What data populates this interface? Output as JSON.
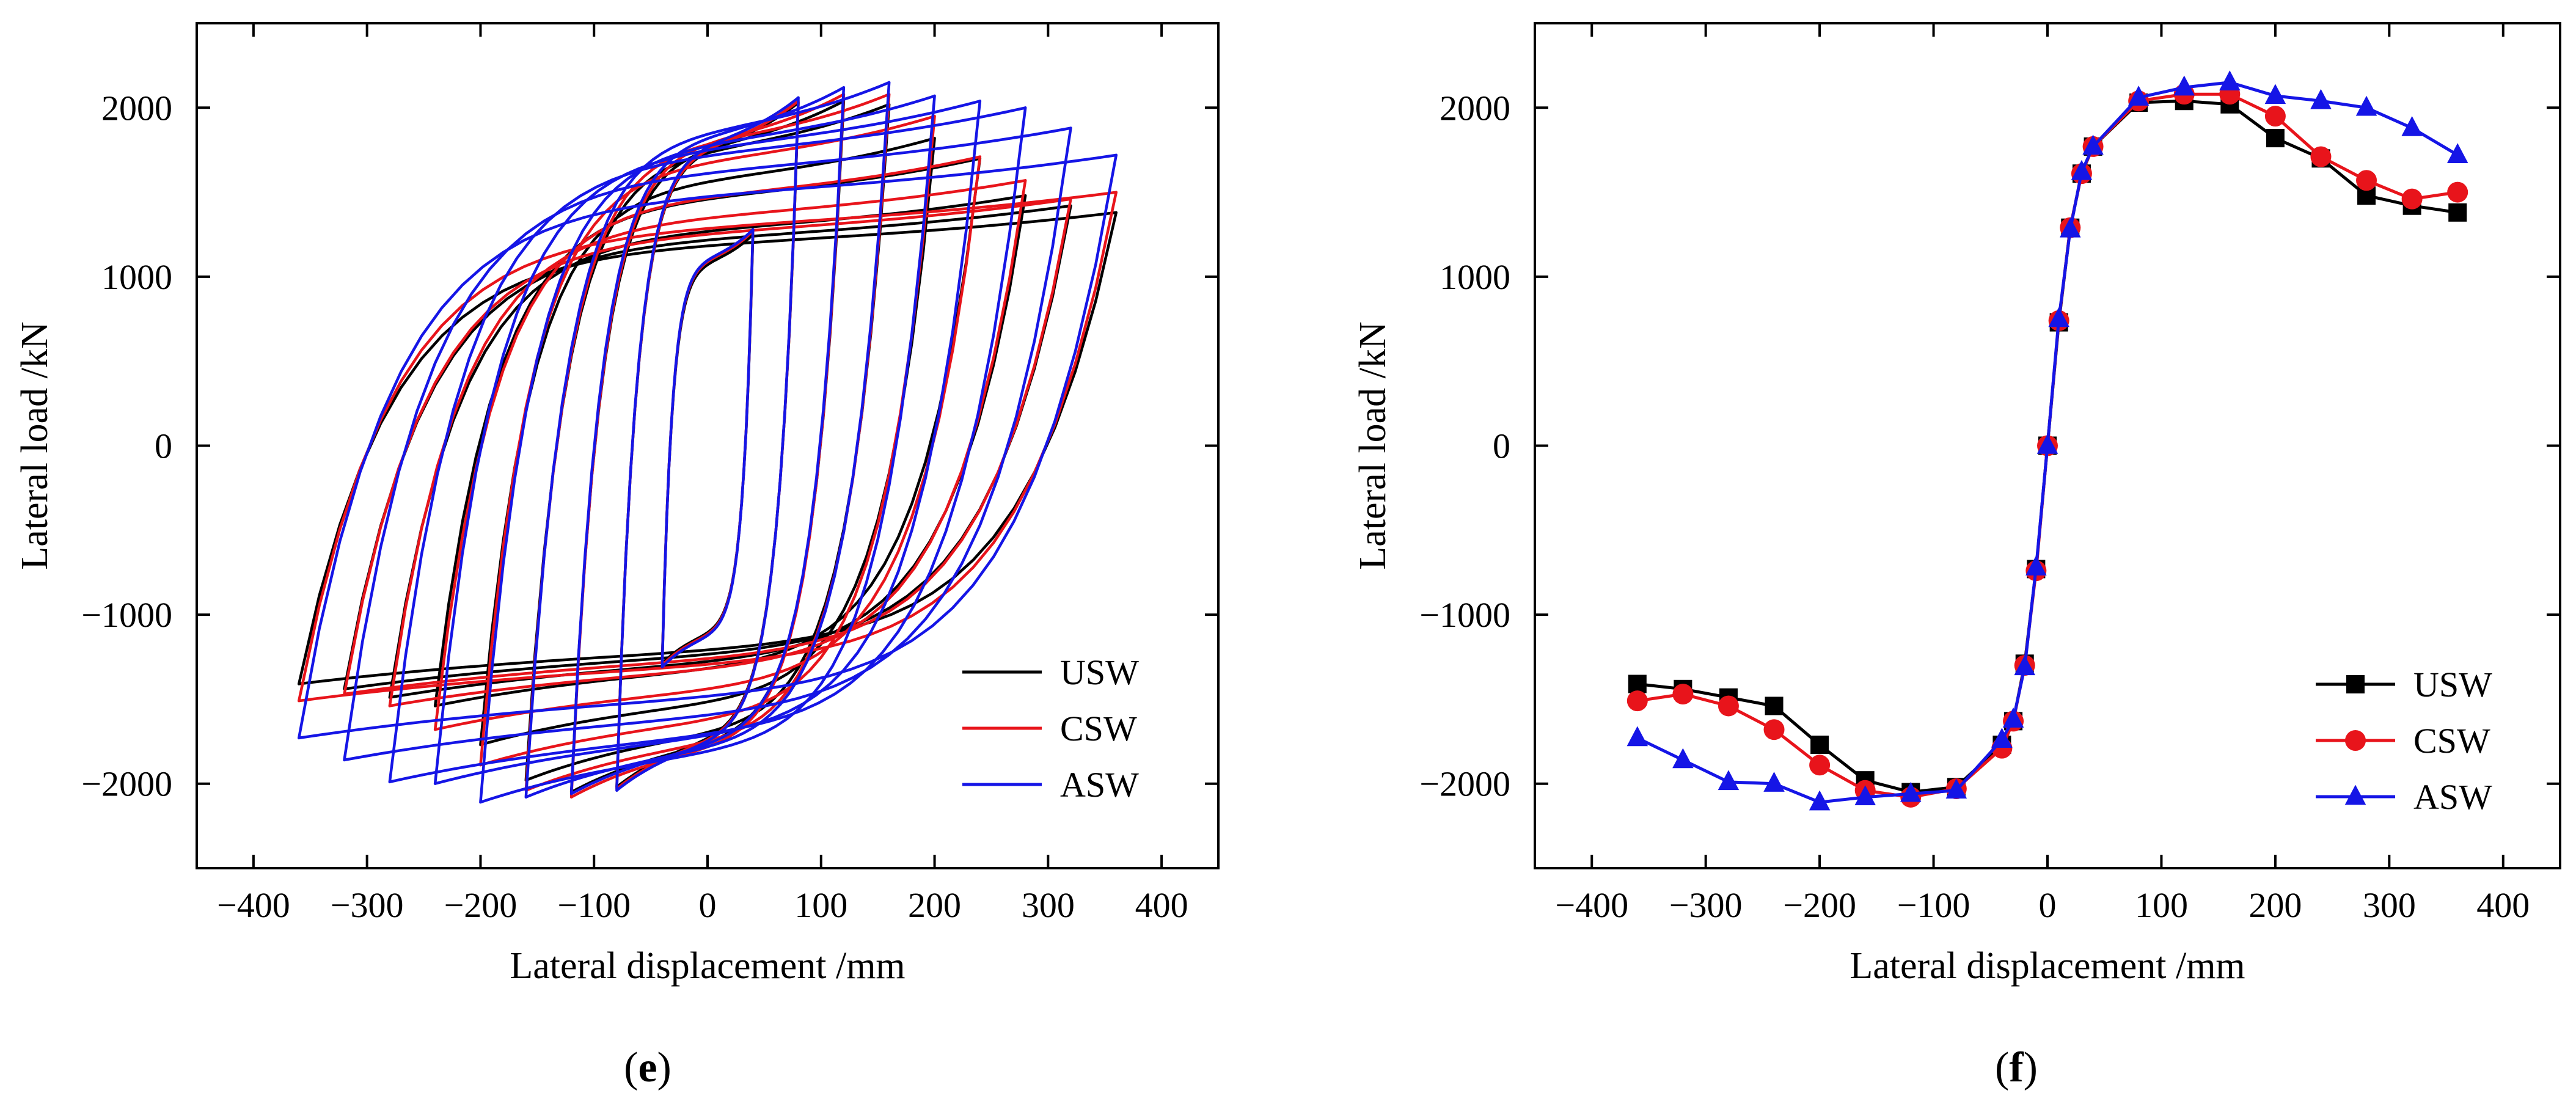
{
  "chart_data": [
    {
      "id": "e",
      "panel_label_open": "(",
      "panel_label": "e",
      "panel_label_close": ")",
      "type": "line",
      "subtype": "hysteresis",
      "xlabel": "Lateral displacement /mm",
      "ylabel": "Lateral load /kN",
      "xlim": [
        -450,
        450
      ],
      "ylim": [
        -2500,
        2500
      ],
      "xticks": [
        -400,
        -300,
        -200,
        -100,
        0,
        100,
        200,
        300,
        400
      ],
      "xtick_labels": [
        "−400",
        "−300",
        "−200",
        "−100",
        "0",
        "100",
        "200",
        "300",
        "400"
      ],
      "yticks": [
        -2000,
        -1000,
        0,
        1000,
        2000
      ],
      "ytick_labels": [
        "−2000",
        "−1000",
        "0",
        "1000",
        "2000"
      ],
      "legend_position": "bottom-right",
      "amplitudes": [
        40,
        80,
        120,
        160,
        200,
        240,
        280,
        320,
        360
      ],
      "series": [
        {
          "name": "USW",
          "color": "#000000",
          "peak_pos": [
            1250,
            2030,
            2040,
            2020,
            1820,
            1700,
            1480,
            1420,
            1380
          ],
          "peak_neg": [
            -1290,
            -2020,
            -2050,
            -1980,
            -1770,
            -1540,
            -1490,
            -1440,
            -1410
          ]
        },
        {
          "name": "CSW",
          "color": "#e8141b",
          "peak_pos": [
            1270,
            2040,
            2080,
            2080,
            1950,
            1710,
            1570,
            1460,
            1500
          ],
          "peak_neg": [
            -1300,
            -2030,
            -2080,
            -2040,
            -1890,
            -1680,
            -1540,
            -1470,
            -1510
          ]
        },
        {
          "name": "ASW",
          "color": "#1515e6",
          "peak_pos": [
            1280,
            2060,
            2120,
            2150,
            2070,
            2040,
            2000,
            1880,
            1720
          ],
          "peak_neg": [
            -1310,
            -2040,
            -2060,
            -2080,
            -2110,
            -2000,
            -1990,
            -1860,
            -1730
          ]
        }
      ]
    },
    {
      "id": "f",
      "panel_label_open": "(",
      "panel_label": "f",
      "panel_label_close": ")",
      "type": "line",
      "subtype": "skeleton curve",
      "xlabel": "Lateral displacement /mm",
      "ylabel": "Lateral load /kN",
      "xlim": [
        -450,
        450
      ],
      "ylim": [
        -2500,
        2500
      ],
      "xticks": [
        -400,
        -300,
        -200,
        -100,
        0,
        100,
        200,
        300,
        400
      ],
      "xtick_labels": [
        "−400",
        "−300",
        "−200",
        "−100",
        "0",
        "100",
        "200",
        "300",
        "400"
      ],
      "yticks": [
        -2000,
        -1000,
        0,
        1000,
        2000
      ],
      "ytick_labels": [
        "−2000",
        "−1000",
        "0",
        "1000",
        "2000"
      ],
      "legend_position": "bottom-right",
      "series": [
        {
          "name": "USW",
          "color": "#000000",
          "marker": "square",
          "x": [
            -360,
            -320,
            -280,
            -240,
            -200,
            -160,
            -120,
            -80,
            -40,
            -30,
            -20,
            -10,
            0,
            10,
            20,
            30,
            40,
            80,
            120,
            160,
            200,
            240,
            280,
            320,
            360
          ],
          "y": [
            -1410,
            -1440,
            -1490,
            -1540,
            -1770,
            -1980,
            -2050,
            -2020,
            -1770,
            -1630,
            -1290,
            -730,
            0,
            730,
            1290,
            1610,
            1770,
            2030,
            2040,
            2020,
            1820,
            1700,
            1480,
            1420,
            1380
          ]
        },
        {
          "name": "CSW",
          "color": "#e8141b",
          "marker": "circle",
          "x": [
            -360,
            -320,
            -280,
            -240,
            -200,
            -160,
            -120,
            -80,
            -40,
            -30,
            -20,
            -10,
            0,
            10,
            20,
            30,
            40,
            80,
            120,
            160,
            200,
            240,
            280,
            320,
            360
          ],
          "y": [
            -1510,
            -1470,
            -1540,
            -1680,
            -1890,
            -2040,
            -2080,
            -2030,
            -1790,
            -1630,
            -1300,
            -740,
            0,
            740,
            1290,
            1610,
            1770,
            2040,
            2080,
            2080,
            1950,
            1710,
            1570,
            1460,
            1500
          ]
        },
        {
          "name": "ASW",
          "color": "#1515e6",
          "marker": "triangle",
          "x": [
            -360,
            -320,
            -280,
            -240,
            -200,
            -160,
            -120,
            -80,
            -40,
            -30,
            -20,
            -10,
            0,
            10,
            20,
            30,
            40,
            80,
            120,
            160,
            200,
            240,
            280,
            320,
            360
          ],
          "y": [
            -1730,
            -1860,
            -1990,
            -2000,
            -2110,
            -2080,
            -2060,
            -2040,
            -1740,
            -1620,
            -1310,
            -720,
            0,
            750,
            1280,
            1620,
            1770,
            2060,
            2120,
            2150,
            2070,
            2040,
            2000,
            1880,
            1720
          ]
        }
      ]
    }
  ]
}
